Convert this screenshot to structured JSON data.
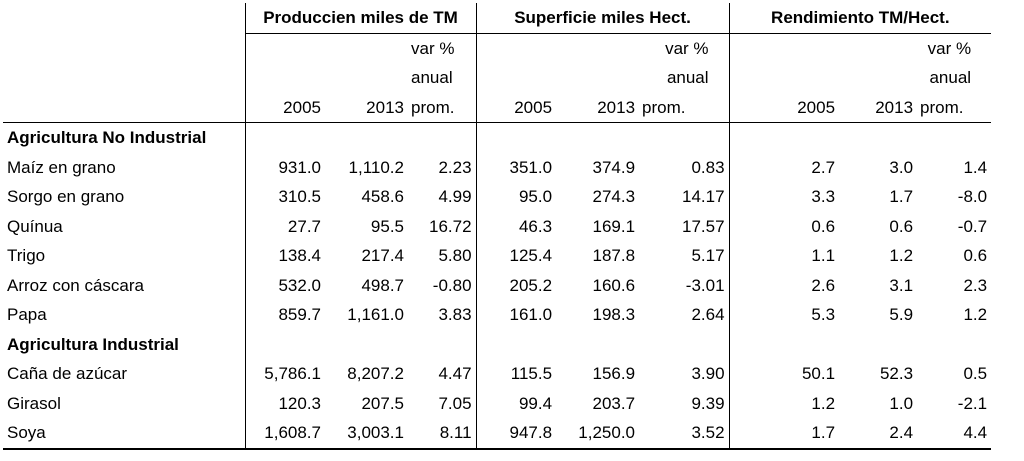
{
  "groups": [
    {
      "label": "Produccien miles de TM"
    },
    {
      "label": "Superficie miles Hect."
    },
    {
      "label": "Rendimiento TM/Hect."
    }
  ],
  "subheaders": {
    "var_line1": "var %",
    "var_line2": "anual",
    "var_line3": "prom.",
    "y2005": "2005",
    "y2013": "2013"
  },
  "sections": [
    {
      "title": "Agricultura No Industrial",
      "rows": [
        {
          "name": "Maíz en grano",
          "values": [
            "931.0",
            "1,110.2",
            "2.23",
            "351.0",
            "374.9",
            "0.83",
            "2.7",
            "3.0",
            "1.4"
          ]
        },
        {
          "name": "Sorgo en grano",
          "values": [
            "310.5",
            "458.6",
            "4.99",
            "95.0",
            "274.3",
            "14.17",
            "3.3",
            "1.7",
            "-8.0"
          ]
        },
        {
          "name": "Quínua",
          "values": [
            "27.7",
            "95.5",
            "16.72",
            "46.3",
            "169.1",
            "17.57",
            "0.6",
            "0.6",
            "-0.7"
          ]
        },
        {
          "name": "Trigo",
          "values": [
            "138.4",
            "217.4",
            "5.80",
            "125.4",
            "187.8",
            "5.17",
            "1.1",
            "1.2",
            "0.6"
          ]
        },
        {
          "name": "Arroz con cáscara",
          "values": [
            "532.0",
            "498.7",
            "-0.80",
            "205.2",
            "160.6",
            "-3.01",
            "2.6",
            "3.1",
            "2.3"
          ]
        },
        {
          "name": "Papa",
          "values": [
            "859.7",
            "1,161.0",
            "3.83",
            "161.0",
            "198.3",
            "2.64",
            "5.3",
            "5.9",
            "1.2"
          ]
        }
      ]
    },
    {
      "title": "Agricultura Industrial",
      "rows": [
        {
          "name": "Caña de azúcar",
          "values": [
            "5,786.1",
            "8,207.2",
            "4.47",
            "115.5",
            "156.9",
            "3.90",
            "50.1",
            "52.3",
            "0.5"
          ]
        },
        {
          "name": "Girasol",
          "values": [
            "120.3",
            "207.5",
            "7.05",
            "99.4",
            "203.7",
            "9.39",
            "1.2",
            "1.0",
            "-2.1"
          ]
        },
        {
          "name": "Soya",
          "values": [
            "1,608.7",
            "3,003.1",
            "8.11",
            "947.8",
            "1,250.0",
            "3.52",
            "1.7",
            "2.4",
            "4.4"
          ]
        }
      ]
    }
  ]
}
